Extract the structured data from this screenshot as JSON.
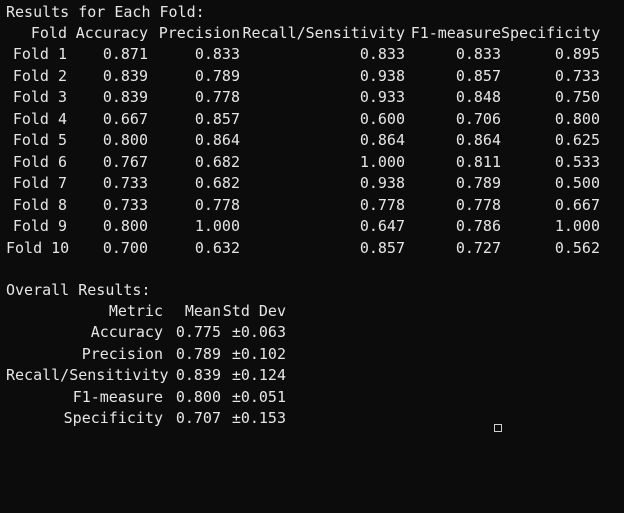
{
  "fold_section": {
    "heading": "Results for Each Fold:",
    "headers": [
      "Fold",
      "Accuracy",
      "Precision",
      "Recall/Sensitivity",
      "F1-measure",
      "Specificity"
    ],
    "rows": [
      [
        "Fold 1",
        "0.871",
        "0.833",
        "0.833",
        "0.833",
        "0.895"
      ],
      [
        "Fold 2",
        "0.839",
        "0.789",
        "0.938",
        "0.857",
        "0.733"
      ],
      [
        "Fold 3",
        "0.839",
        "0.778",
        "0.933",
        "0.848",
        "0.750"
      ],
      [
        "Fold 4",
        "0.667",
        "0.857",
        "0.600",
        "0.706",
        "0.800"
      ],
      [
        "Fold 5",
        "0.800",
        "0.864",
        "0.864",
        "0.864",
        "0.625"
      ],
      [
        "Fold 6",
        "0.767",
        "0.682",
        "1.000",
        "0.811",
        "0.533"
      ],
      [
        "Fold 7",
        "0.733",
        "0.682",
        "0.938",
        "0.789",
        "0.500"
      ],
      [
        "Fold 8",
        "0.733",
        "0.778",
        "0.778",
        "0.778",
        "0.667"
      ],
      [
        "Fold 9",
        "0.800",
        "1.000",
        "0.647",
        "0.786",
        "1.000"
      ],
      [
        "Fold 10",
        "0.700",
        "0.632",
        "0.857",
        "0.727",
        "0.562"
      ]
    ]
  },
  "overall_section": {
    "heading": "Overall Results:",
    "headers": [
      "Metric",
      "Mean",
      "Std Dev"
    ],
    "rows": [
      [
        "Accuracy",
        "0.775",
        "±0.063"
      ],
      [
        "Precision",
        "0.789",
        "±0.102"
      ],
      [
        "Recall/Sensitivity",
        "0.839",
        "±0.124"
      ],
      [
        "F1-measure",
        "0.800",
        "±0.051"
      ],
      [
        "Specificity",
        "0.707",
        "±0.153"
      ]
    ]
  }
}
